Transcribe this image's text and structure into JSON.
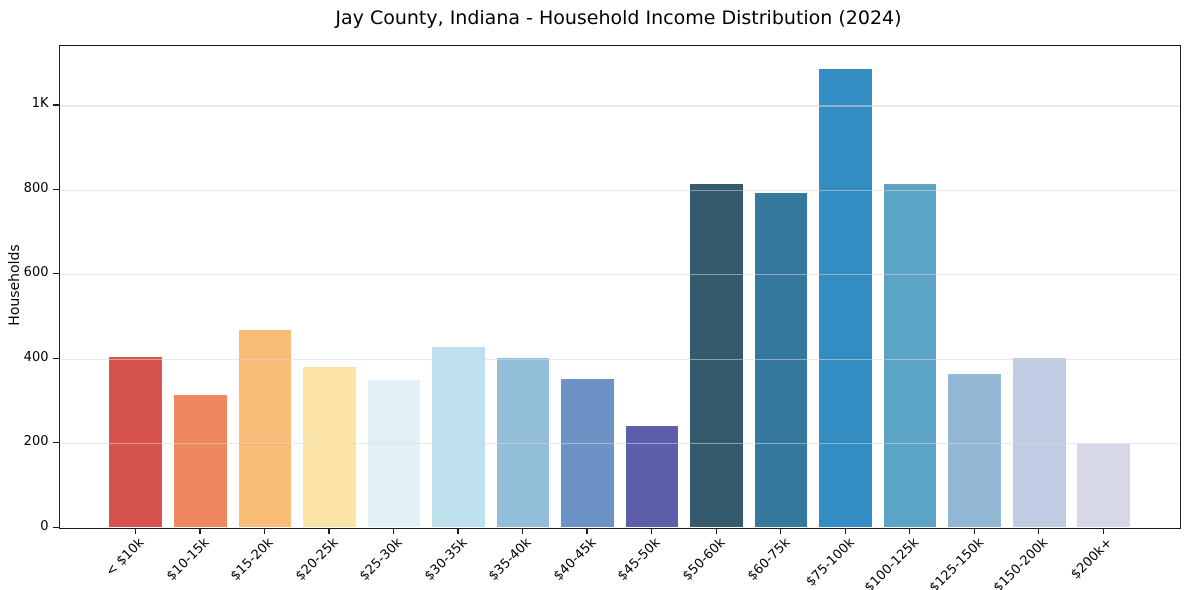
{
  "chart_data": {
    "type": "bar",
    "title": "Jay County, Indiana - Household Income Distribution (2024)",
    "xlabel": "",
    "ylabel": "Households",
    "categories": [
      "< $10k",
      "$10-15k",
      "$15-20k",
      "$20-25k",
      "$25-30k",
      "$30-35k",
      "$35-40k",
      "$40-45k",
      "$45-50k",
      "$50-60k",
      "$60-75k",
      "$75-100k",
      "$100-125k",
      "$125-150k",
      "$150-200k",
      "$200k+"
    ],
    "values": [
      404,
      314,
      468,
      381,
      349,
      427,
      402,
      353,
      240,
      815,
      792,
      1086,
      814,
      364,
      401,
      197
    ],
    "bar_colors": [
      "#d6534e",
      "#f0885f",
      "#f9bc76",
      "#fce3a6",
      "#e3f1f7",
      "#bedfec",
      "#92bed9",
      "#6d92c5",
      "#5c60aa",
      "#355a6e",
      "#36799f",
      "#348dc2",
      "#5ca4c6",
      "#93b8d6",
      "#c0cce3",
      "#d7d8e7"
    ],
    "ylim": [
      0,
      1142
    ],
    "yticks": [
      {
        "value": 0,
        "label": "0"
      },
      {
        "value": 200,
        "label": "200"
      },
      {
        "value": 400,
        "label": "400"
      },
      {
        "value": 600,
        "label": "600"
      },
      {
        "value": 800,
        "label": "800"
      },
      {
        "value": 1000,
        "label": "1K"
      }
    ],
    "grid": "horizontal, light gray, drawn over bars",
    "legend": "none",
    "background_color": "#ffffff",
    "spine_color": "#1c1c1c"
  }
}
